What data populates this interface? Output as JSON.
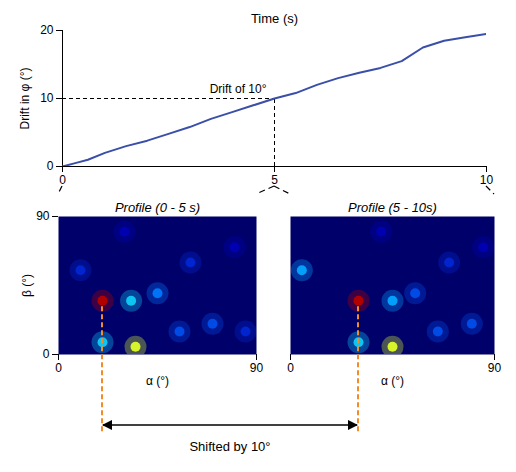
{
  "chart_data": [
    {
      "type": "line",
      "xlabel": "Time (s)",
      "ylabel": "Drift in φ (°)",
      "x": [
        0,
        0.3,
        0.6,
        1,
        1.5,
        2,
        2.5,
        3,
        3.5,
        4,
        4.5,
        5,
        5.5,
        6,
        6.5,
        7,
        7.5,
        8,
        8.5,
        9,
        9.5,
        10
      ],
      "values": [
        0,
        0.5,
        1,
        2,
        3,
        3.8,
        4.8,
        5.8,
        7,
        8,
        9,
        10,
        10.8,
        12,
        13,
        13.8,
        14.5,
        15.5,
        17.5,
        18.5,
        19,
        19.5
      ],
      "color": "#3a4fa8",
      "xlim": [
        0,
        10
      ],
      "ylim": [
        0,
        20
      ],
      "xticks": [
        0,
        5,
        10
      ],
      "yticks": [
        0,
        10,
        20
      ],
      "annotations": [
        {
          "text": "Drift of 10°",
          "x": 5,
          "y": 10
        }
      ]
    },
    {
      "type": "heatmap",
      "title": "Profile (0 - 5 s)",
      "xlabel": "α (°)",
      "ylabel": "β (°)",
      "xlim": [
        0,
        90
      ],
      "ylim": [
        0,
        90
      ],
      "xticks": [
        0,
        90
      ],
      "yticks": [
        0,
        90
      ],
      "cells": [
        {
          "alpha": 20,
          "beta": 35,
          "value": 1.0
        },
        {
          "alpha": 35,
          "beta": 5,
          "value": 0.7
        },
        {
          "alpha": 20,
          "beta": 8,
          "value": 0.45
        },
        {
          "alpha": 33,
          "beta": 35,
          "value": 0.45
        },
        {
          "alpha": 45,
          "beta": 40,
          "value": 0.35
        },
        {
          "alpha": 55,
          "beta": 15,
          "value": 0.3
        },
        {
          "alpha": 70,
          "beta": 20,
          "value": 0.3
        },
        {
          "alpha": 85,
          "beta": 15,
          "value": 0.25
        },
        {
          "alpha": 60,
          "beta": 60,
          "value": 0.25
        },
        {
          "alpha": 80,
          "beta": 70,
          "value": 0.2
        },
        {
          "alpha": 30,
          "beta": 80,
          "value": 0.2
        },
        {
          "alpha": 10,
          "beta": 55,
          "value": 0.25
        }
      ]
    },
    {
      "type": "heatmap",
      "title": "Profile (5 - 10s)",
      "xlabel": "α (°)",
      "ylabel": null,
      "xlim": [
        0,
        90
      ],
      "ylim": [
        0,
        90
      ],
      "xticks": [
        0,
        90
      ],
      "yticks": [],
      "cells": [
        {
          "alpha": 30,
          "beta": 35,
          "value": 1.0
        },
        {
          "alpha": 45,
          "beta": 5,
          "value": 0.7
        },
        {
          "alpha": 30,
          "beta": 8,
          "value": 0.45
        },
        {
          "alpha": 5,
          "beta": 55,
          "value": 0.4
        },
        {
          "alpha": 45,
          "beta": 35,
          "value": 0.4
        },
        {
          "alpha": 55,
          "beta": 40,
          "value": 0.3
        },
        {
          "alpha": 65,
          "beta": 15,
          "value": 0.3
        },
        {
          "alpha": 80,
          "beta": 20,
          "value": 0.3
        },
        {
          "alpha": 70,
          "beta": 60,
          "value": 0.25
        },
        {
          "alpha": 85,
          "beta": 70,
          "value": 0.2
        },
        {
          "alpha": 40,
          "beta": 80,
          "value": 0.2
        }
      ]
    }
  ],
  "annotations": [
    {
      "text": "Shifted by 10°"
    }
  ]
}
